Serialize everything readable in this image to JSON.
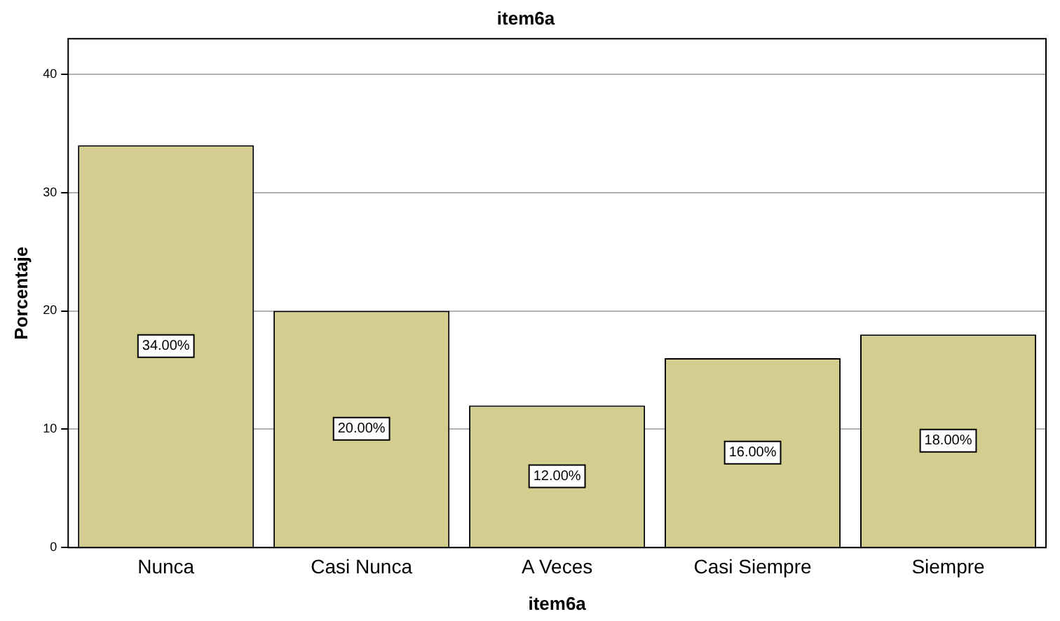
{
  "chart_data": {
    "type": "bar",
    "title": "item6a",
    "xlabel": "item6a",
    "ylabel": "Porcentaje",
    "categories": [
      "Nunca",
      "Casi Nunca",
      "A Veces",
      "Casi Siempre",
      "Siempre"
    ],
    "values": [
      34,
      20,
      12,
      16,
      18
    ],
    "value_labels": [
      "34.00%",
      "20.00%",
      "12.00%",
      "16.00%",
      "18.00%"
    ],
    "color": "#d3ce8f",
    "ylim": [
      0,
      43
    ],
    "yticks": [
      0,
      10,
      20,
      30,
      40
    ],
    "grid": "y",
    "legend": false
  }
}
